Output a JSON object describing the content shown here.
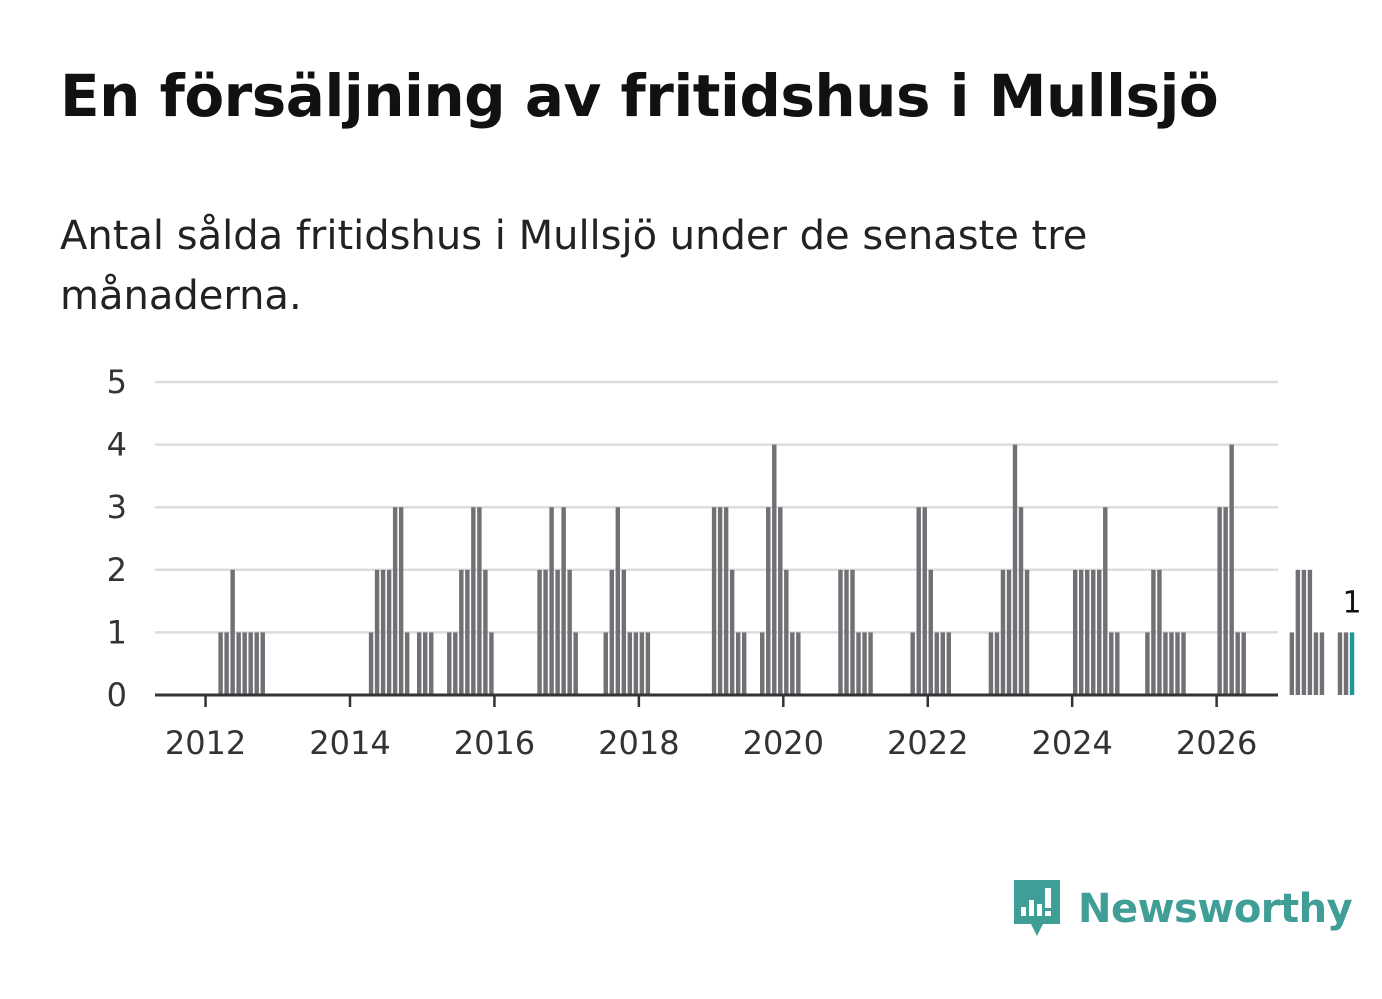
{
  "title": "En försäljning av fritidshus i Mullsjö",
  "subtitle": "Antal sålda fritidshus i Mullsjö under de senaste tre månaderna.",
  "brand": {
    "name": "Newsworthy",
    "color": "#3f9e96",
    "icon": "newsworthy-logo-icon"
  },
  "colors": {
    "bar": "#717075",
    "highlight": "#1a9a98",
    "grid": "#dddddd",
    "axis": "#333333"
  },
  "chart_data": {
    "type": "bar",
    "title": "En försäljning av fritidshus i Mullsjö",
    "xlabel": "",
    "ylabel": "",
    "ylim": [
      0,
      5
    ],
    "yticks": [
      0,
      1,
      2,
      3,
      4,
      5
    ],
    "xlim": [
      2011.3,
      2026.85
    ],
    "xticks": [
      "2012",
      "2014",
      "2016",
      "2018",
      "2020",
      "2022",
      "2024",
      "2026"
    ],
    "grid": true,
    "start_month": "2011-05",
    "values": [
      0,
      0,
      0,
      0,
      0,
      0,
      0,
      0,
      0,
      0,
      1,
      1,
      2,
      1,
      1,
      1,
      1,
      1,
      0,
      0,
      0,
      0,
      0,
      0,
      0,
      0,
      0,
      0,
      0,
      0,
      0,
      0,
      0,
      0,
      0,
      1,
      2,
      2,
      2,
      3,
      3,
      1,
      0,
      1,
      1,
      1,
      0,
      0,
      1,
      1,
      2,
      2,
      3,
      3,
      2,
      1,
      0,
      0,
      0,
      0,
      0,
      0,
      0,
      2,
      2,
      3,
      2,
      3,
      2,
      1,
      0,
      0,
      0,
      0,
      1,
      2,
      3,
      2,
      1,
      1,
      1,
      1,
      0,
      0,
      0,
      0,
      0,
      0,
      0,
      0,
      0,
      0,
      3,
      3,
      3,
      2,
      1,
      1,
      0,
      0,
      1,
      3,
      4,
      3,
      2,
      1,
      1,
      0,
      0,
      0,
      0,
      0,
      0,
      2,
      2,
      2,
      1,
      1,
      1,
      0,
      0,
      0,
      0,
      0,
      0,
      1,
      3,
      3,
      2,
      1,
      1,
      1,
      0,
      0,
      0,
      0,
      0,
      0,
      1,
      1,
      2,
      2,
      4,
      3,
      2,
      0,
      0,
      0,
      0,
      0,
      0,
      0,
      2,
      2,
      2,
      2,
      2,
      3,
      1,
      1,
      0,
      0,
      0,
      0,
      1,
      2,
      2,
      1,
      1,
      1,
      1,
      0,
      0,
      0,
      0,
      0,
      3,
      3,
      4,
      1,
      1,
      0,
      0,
      0,
      0,
      0,
      0,
      0,
      1,
      2,
      2,
      2,
      1,
      1,
      0,
      0,
      1,
      1,
      1
    ],
    "highlight_last": true,
    "annotations": [
      {
        "label": "1",
        "target": "last-bar"
      }
    ]
  }
}
